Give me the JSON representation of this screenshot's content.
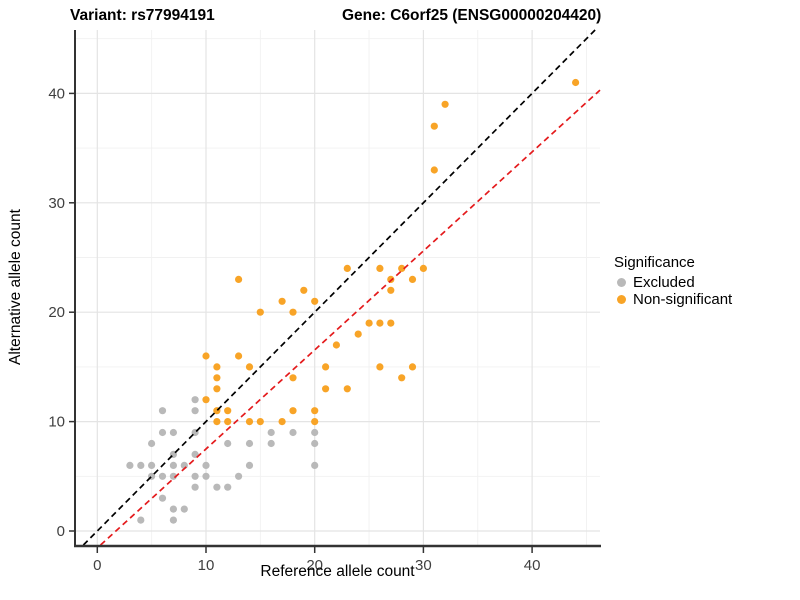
{
  "chart_data": {
    "type": "scatter",
    "title": {
      "left": "Variant: rs77994191",
      "right": "Gene: C6orf25 (ENSG00000204420)"
    },
    "xlabel": "Reference allele count",
    "ylabel": "Alternative allele count",
    "xlim": [
      -2.1,
      46.3
    ],
    "ylim": [
      -1.3,
      45.8
    ],
    "x_ticks": [
      0,
      10,
      20,
      30,
      40
    ],
    "y_ticks": [
      0,
      10,
      20,
      30,
      40
    ],
    "minor_ticks": [
      5,
      15,
      25,
      35,
      45
    ],
    "grid": true,
    "legend": {
      "title": "Significance",
      "position": "right"
    },
    "series": [
      {
        "name": "Excluded",
        "color": "#B9B9B9",
        "points": [
          [
            4,
            1
          ],
          [
            7,
            1
          ],
          [
            7,
            2
          ],
          [
            8,
            2
          ],
          [
            6,
            3
          ],
          [
            9,
            4
          ],
          [
            11,
            4
          ],
          [
            12,
            4
          ],
          [
            5,
            5
          ],
          [
            6,
            5
          ],
          [
            7,
            5
          ],
          [
            9,
            5
          ],
          [
            10,
            5
          ],
          [
            13,
            5
          ],
          [
            3,
            6
          ],
          [
            4,
            6
          ],
          [
            5,
            6
          ],
          [
            7,
            6
          ],
          [
            8,
            6
          ],
          [
            10,
            6
          ],
          [
            14,
            6
          ],
          [
            20,
            6
          ],
          [
            7,
            7
          ],
          [
            9,
            7
          ],
          [
            5,
            8
          ],
          [
            12,
            8
          ],
          [
            14,
            8
          ],
          [
            16,
            8
          ],
          [
            20,
            8
          ],
          [
            6,
            9
          ],
          [
            7,
            9
          ],
          [
            9,
            9
          ],
          [
            16,
            9
          ],
          [
            18,
            9
          ],
          [
            20,
            9
          ],
          [
            6,
            11
          ],
          [
            9,
            11
          ],
          [
            9,
            12
          ]
        ]
      },
      {
        "name": "Non-significant",
        "color": "#F8A427",
        "points": [
          [
            11,
            10
          ],
          [
            12,
            10
          ],
          [
            14,
            10
          ],
          [
            15,
            10
          ],
          [
            17,
            10
          ],
          [
            20,
            10
          ],
          [
            11,
            11
          ],
          [
            12,
            11
          ],
          [
            18,
            11
          ],
          [
            20,
            11
          ],
          [
            10,
            12
          ],
          [
            11,
            13
          ],
          [
            21,
            13
          ],
          [
            23,
            13
          ],
          [
            11,
            14
          ],
          [
            18,
            14
          ],
          [
            28,
            14
          ],
          [
            11,
            15
          ],
          [
            14,
            15
          ],
          [
            21,
            15
          ],
          [
            26,
            15
          ],
          [
            29,
            15
          ],
          [
            10,
            16
          ],
          [
            13,
            16
          ],
          [
            22,
            17
          ],
          [
            24,
            18
          ],
          [
            25,
            19
          ],
          [
            26,
            19
          ],
          [
            27,
            19
          ],
          [
            15,
            20
          ],
          [
            18,
            20
          ],
          [
            17,
            21
          ],
          [
            20,
            21
          ],
          [
            19,
            22
          ],
          [
            27,
            22
          ],
          [
            13,
            23
          ],
          [
            27,
            23
          ],
          [
            29,
            23
          ],
          [
            23,
            24
          ],
          [
            26,
            24
          ],
          [
            28,
            24
          ],
          [
            30,
            24
          ],
          [
            31,
            33
          ],
          [
            31,
            37
          ],
          [
            32,
            39
          ],
          [
            44,
            41
          ]
        ]
      }
    ],
    "ablines": [
      {
        "name": "identity-line",
        "slope": 1,
        "intercept": 0,
        "color": "#000000",
        "style": "dashed"
      },
      {
        "name": "regression-line",
        "slope": 0.905,
        "intercept": -1.55,
        "color": "#E41A1C",
        "style": "dashed"
      }
    ],
    "panel": {
      "grid_major_color": "#E4E4E4",
      "grid_minor_color": "#F1F1F1",
      "axis_line_color": "#333333",
      "tick_label_color": "#404040"
    }
  }
}
